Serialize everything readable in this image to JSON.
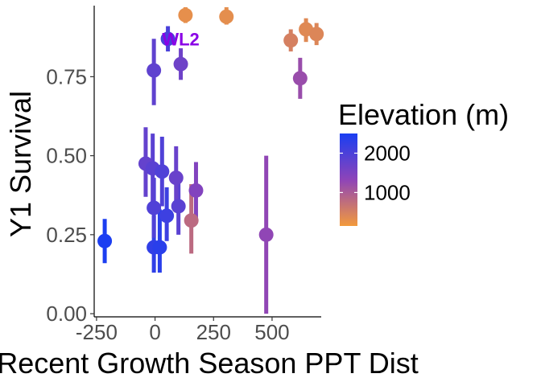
{
  "chart_data": {
    "type": "scatter",
    "title": "",
    "xlabel": "Recent Growth Season PPT Dist",
    "ylabel": "Y1 Survival",
    "xlim": [
      -260,
      710
    ],
    "ylim": [
      -0.01,
      0.975
    ],
    "x_ticks": [
      -250,
      0,
      250,
      500
    ],
    "x_tick_labels": [
      "-250",
      "0",
      "250",
      "500"
    ],
    "y_ticks": [
      0.0,
      0.25,
      0.5,
      0.75
    ],
    "y_tick_labels": [
      "0.00",
      "0.25",
      "0.50",
      "0.75"
    ],
    "grid": false,
    "legend": {
      "title": "Elevation (m)",
      "placement": "right",
      "type": "colorbar",
      "range": [
        150,
        2500
      ],
      "ticks": [
        1000,
        2000
      ],
      "tick_labels": [
        "1000",
        "2000"
      ],
      "colors": {
        "low": "#f39a3c",
        "mid": "#8e44b8",
        "high": "#1a3ef2"
      }
    },
    "annotations": [
      {
        "text": "WL2",
        "x": 110,
        "y": 0.87,
        "color": "#8a00e6"
      }
    ],
    "points": [
      {
        "x": -215,
        "y": 0.23,
        "lo": 0.16,
        "hi": 0.3,
        "elev": 2480
      },
      {
        "x": -5,
        "y": 0.21,
        "lo": 0.13,
        "hi": 0.31,
        "elev": 2280
      },
      {
        "x": 20,
        "y": 0.21,
        "lo": 0.13,
        "hi": 0.33,
        "elev": 2350
      },
      {
        "x": 50,
        "y": 0.31,
        "lo": 0.23,
        "hi": 0.4,
        "elev": 2150
      },
      {
        "x": -5,
        "y": 0.335,
        "lo": 0.24,
        "hi": 0.43,
        "elev": 1950
      },
      {
        "x": 100,
        "y": 0.34,
        "lo": 0.25,
        "hi": 0.43,
        "elev": 1850
      },
      {
        "x": -40,
        "y": 0.475,
        "lo": 0.37,
        "hi": 0.59,
        "elev": 1750
      },
      {
        "x": -10,
        "y": 0.46,
        "lo": 0.35,
        "hi": 0.57,
        "elev": 1850
      },
      {
        "x": 30,
        "y": 0.45,
        "lo": 0.34,
        "hi": 0.56,
        "elev": 1950
      },
      {
        "x": 90,
        "y": 0.43,
        "lo": 0.33,
        "hi": 0.53,
        "elev": 1700
      },
      {
        "x": 175,
        "y": 0.39,
        "lo": 0.3,
        "hi": 0.48,
        "elev": 1450
      },
      {
        "x": 155,
        "y": 0.295,
        "lo": 0.19,
        "hi": 0.41,
        "elev": 800
      },
      {
        "x": -5,
        "y": 0.77,
        "lo": 0.66,
        "hi": 0.87,
        "elev": 1800
      },
      {
        "x": 55,
        "y": 0.87,
        "lo": 0.83,
        "hi": 0.91,
        "elev": 2020
      },
      {
        "x": 110,
        "y": 0.79,
        "lo": 0.74,
        "hi": 0.84,
        "elev": 1650
      },
      {
        "x": 130,
        "y": 0.945,
        "lo": 0.92,
        "hi": 0.97,
        "elev": 300
      },
      {
        "x": 305,
        "y": 0.94,
        "lo": 0.915,
        "hi": 0.97,
        "elev": 320
      },
      {
        "x": 475,
        "y": 0.25,
        "lo": 0.0,
        "hi": 0.5,
        "elev": 1300
      },
      {
        "x": 580,
        "y": 0.865,
        "lo": 0.83,
        "hi": 0.9,
        "elev": 500
      },
      {
        "x": 620,
        "y": 0.745,
        "lo": 0.68,
        "hi": 0.81,
        "elev": 1200
      },
      {
        "x": 645,
        "y": 0.9,
        "lo": 0.86,
        "hi": 0.935,
        "elev": 380
      },
      {
        "x": 690,
        "y": 0.885,
        "lo": 0.85,
        "hi": 0.92,
        "elev": 420
      }
    ]
  }
}
